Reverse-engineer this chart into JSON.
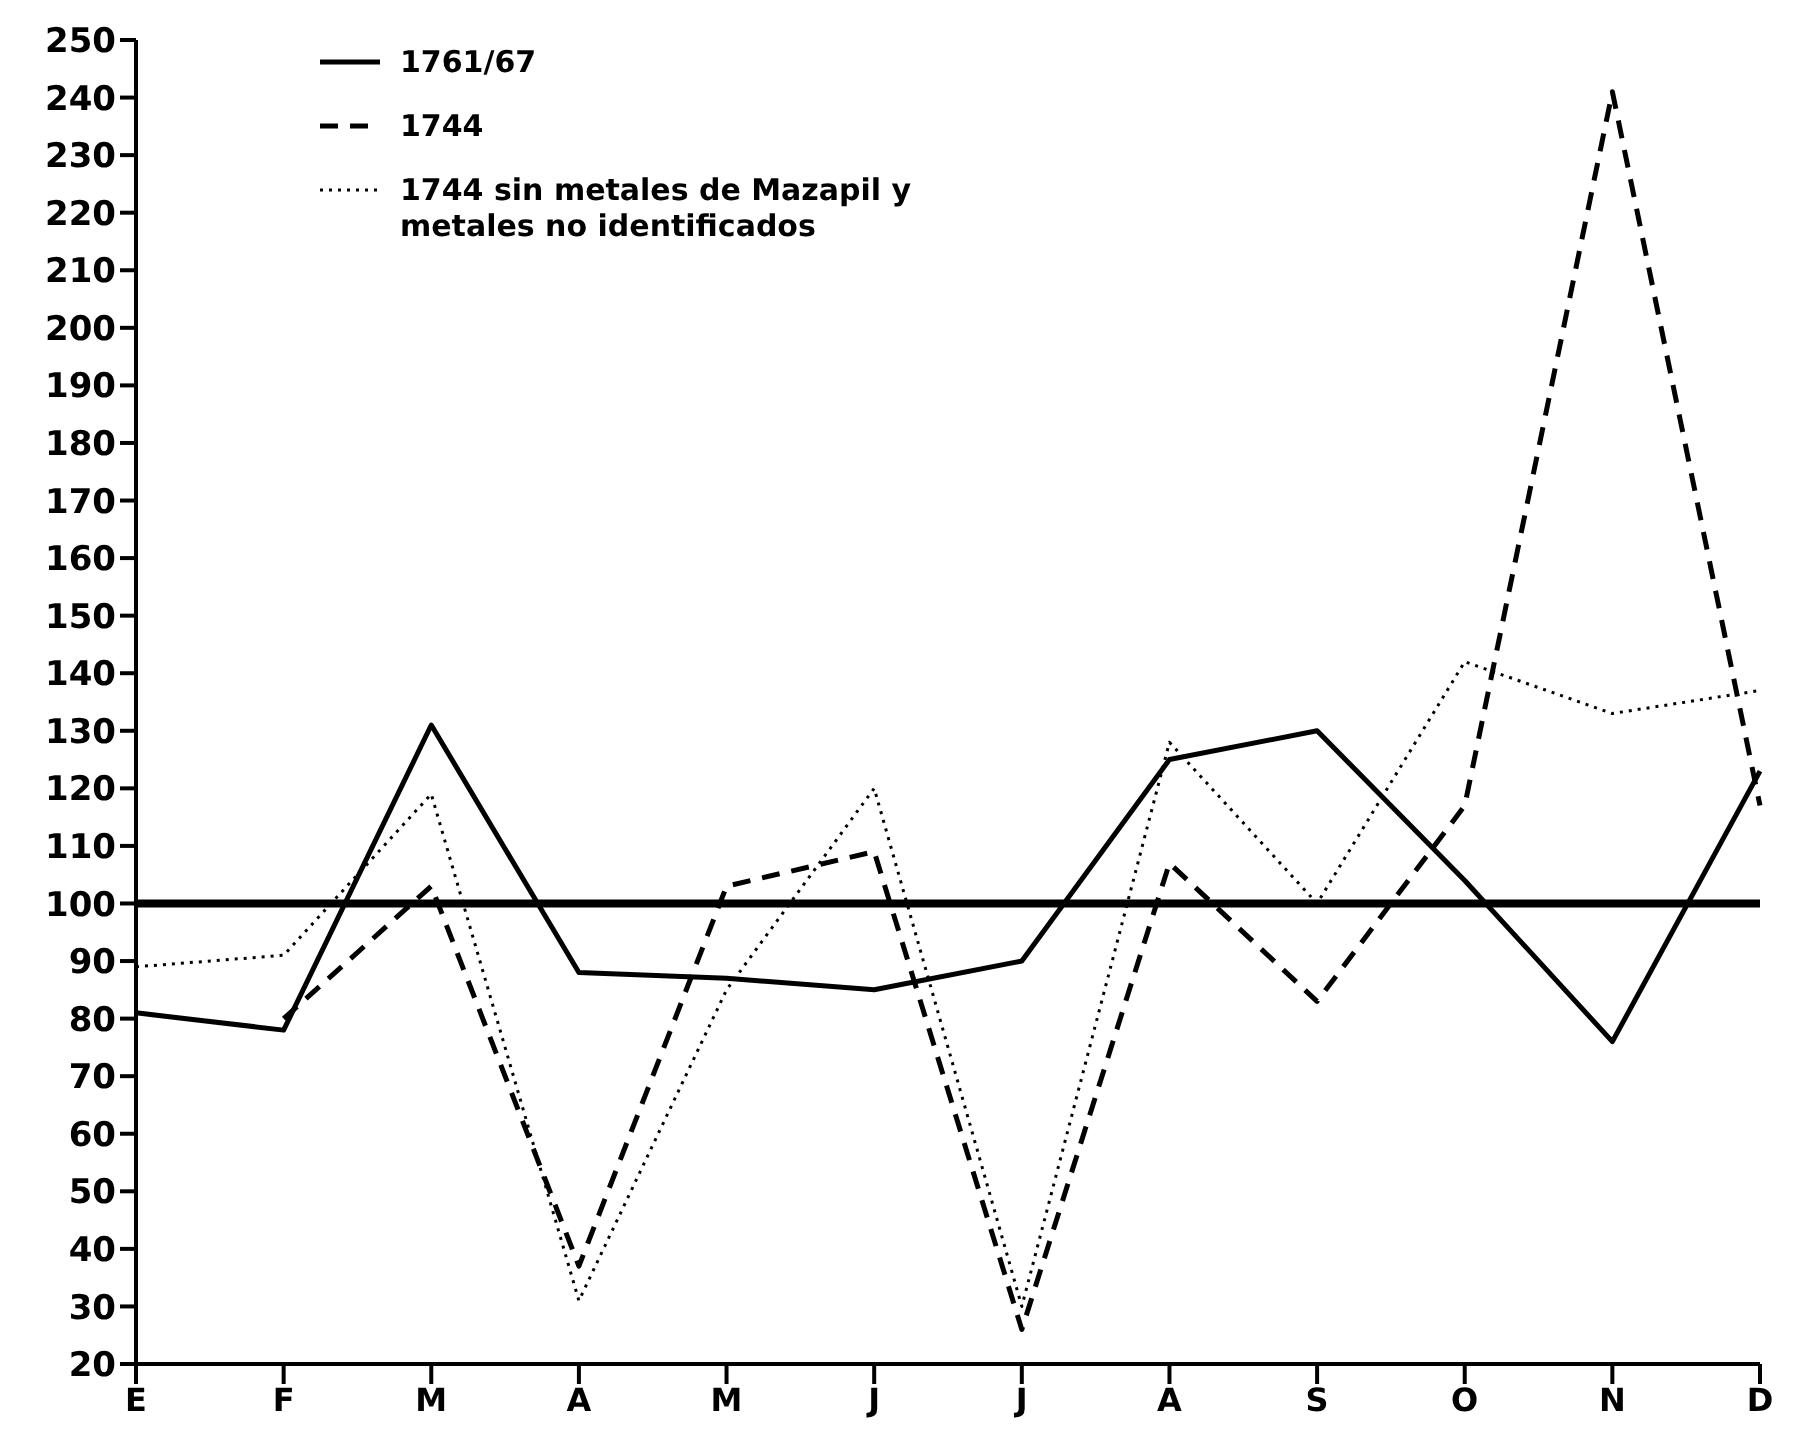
{
  "chart_data": {
    "type": "line",
    "categories": [
      "E",
      "F",
      "M",
      "A",
      "M",
      "J",
      "J",
      "A",
      "S",
      "O",
      "N",
      "D"
    ],
    "series": [
      {
        "name": "1761/67",
        "color": "#000000",
        "line_style": "solid",
        "values": [
          81,
          78,
          131,
          88,
          87,
          85,
          90,
          125,
          130,
          104,
          76,
          123
        ]
      },
      {
        "name": "1744",
        "color": "#000000",
        "line_style": "dashed",
        "values": [
          null,
          80,
          103,
          37,
          103,
          109,
          26,
          107,
          83,
          117,
          241,
          117
        ]
      },
      {
        "name": "1744 sin metales de Mazapil y metales no identificados",
        "color": "#000000",
        "line_style": "dotted",
        "values": [
          89,
          91,
          119,
          31,
          85,
          120,
          30,
          128,
          100,
          142,
          133,
          137
        ]
      }
    ],
    "ylim": [
      20,
      250
    ],
    "yticks": [
      20,
      30,
      40,
      50,
      60,
      70,
      80,
      90,
      100,
      110,
      120,
      130,
      140,
      150,
      160,
      170,
      180,
      190,
      200,
      210,
      220,
      230,
      240,
      250
    ],
    "ref_lines": [
      {
        "axis": "y",
        "value": 100,
        "color": "#000000",
        "line_style": "solid"
      }
    ],
    "grid": false,
    "legend": "top left",
    "marker": "none"
  }
}
